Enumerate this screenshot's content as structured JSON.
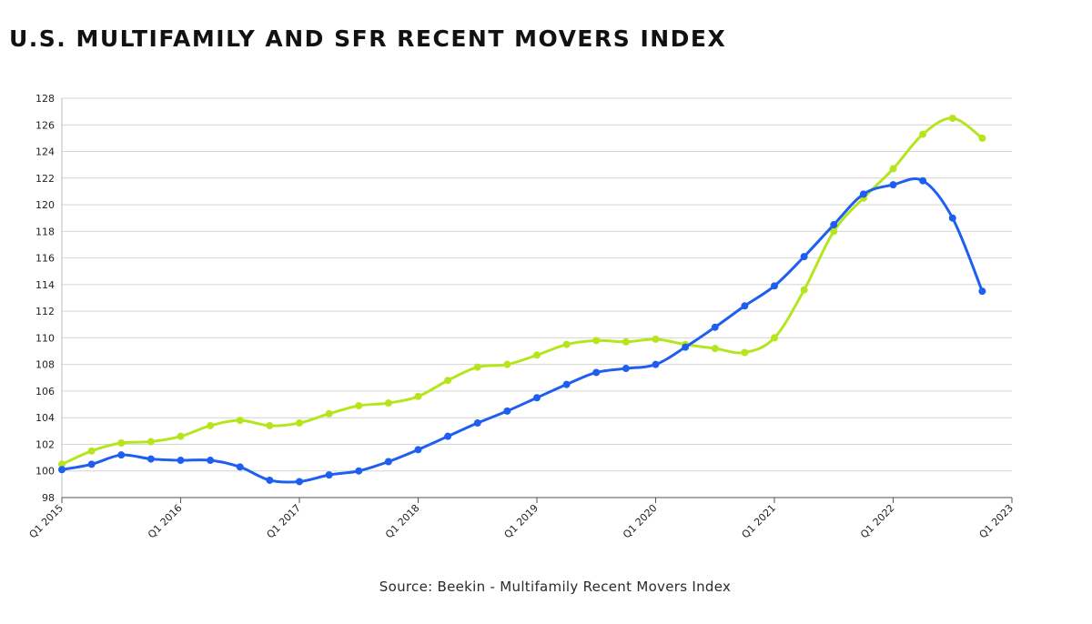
{
  "title": "U.S. MULTIFAMILY AND SFR RECENT MOVERS INDEX",
  "source": "Source: Beekin - Multifamily Recent Movers Index",
  "chart_data": {
    "type": "line",
    "title": "U.S. MULTIFAMILY AND SFR RECENT MOVERS INDEX",
    "xlabel": "",
    "ylabel": "",
    "ylim": [
      98,
      128
    ],
    "yticks": [
      98,
      100,
      102,
      104,
      106,
      108,
      110,
      112,
      114,
      116,
      118,
      120,
      122,
      124,
      126,
      128
    ],
    "xticks": [
      "Q1 2015",
      "Q1 2016",
      "Q1 2017",
      "Q1 2018",
      "Q1 2019",
      "Q1 2020",
      "Q1 2021",
      "Q1 2022",
      "Q1 2023"
    ],
    "grid": true,
    "legend": "none",
    "x": [
      "Q1 2015",
      "Q2 2015",
      "Q3 2015",
      "Q4 2015",
      "Q1 2016",
      "Q2 2016",
      "Q3 2016",
      "Q4 2016",
      "Q1 2017",
      "Q2 2017",
      "Q3 2017",
      "Q4 2017",
      "Q1 2018",
      "Q2 2018",
      "Q3 2018",
      "Q4 2018",
      "Q1 2019",
      "Q2 2019",
      "Q3 2019",
      "Q4 2019",
      "Q1 2020",
      "Q2 2020",
      "Q3 2020",
      "Q4 2020",
      "Q1 2021",
      "Q2 2021",
      "Q3 2021",
      "Q4 2021",
      "Q1 2022",
      "Q2 2022",
      "Q3 2022",
      "Q4 2022"
    ],
    "series": [
      {
        "color": "#b5e61d",
        "values": [
          100.5,
          101.5,
          102.1,
          102.2,
          102.6,
          103.4,
          103.8,
          103.4,
          103.6,
          104.3,
          104.9,
          105.1,
          105.6,
          106.8,
          107.8,
          108.0,
          108.7,
          109.5,
          109.8,
          109.7,
          109.9,
          109.5,
          109.2,
          108.9,
          110.0,
          113.6,
          118.0,
          120.5,
          122.7,
          125.3,
          126.5,
          125.0
        ]
      },
      {
        "color": "#1e5ef0",
        "values": [
          100.1,
          100.5,
          101.2,
          100.9,
          100.8,
          100.8,
          100.3,
          99.3,
          99.2,
          99.7,
          100.0,
          100.7,
          101.6,
          102.6,
          103.6,
          104.5,
          105.5,
          106.5,
          107.4,
          107.7,
          108.0,
          109.3,
          110.8,
          112.4,
          113.9,
          116.1,
          118.5,
          120.8,
          121.5,
          121.8,
          119.0,
          113.5
        ]
      }
    ]
  }
}
